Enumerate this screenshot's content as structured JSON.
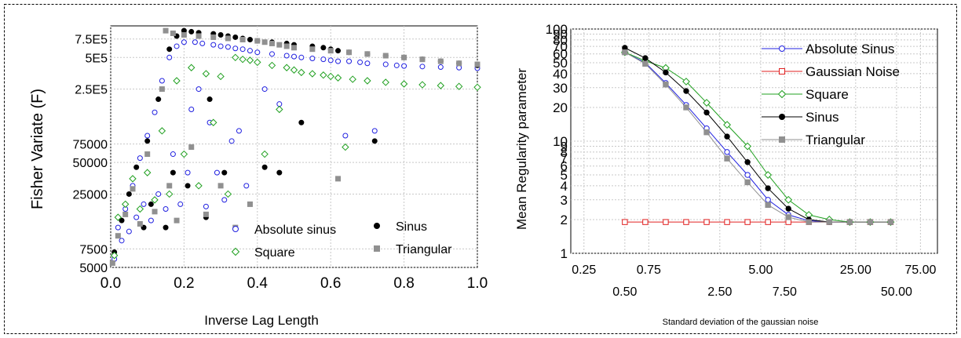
{
  "chart_data": [
    {
      "type": "scatter",
      "xlabel": "Inverse Lag Length",
      "ylabel": "Fisher Variate (F)",
      "x_scale": "linear",
      "y_scale": "log",
      "xlim": [
        0.0,
        1.0
      ],
      "ylim": [
        5000,
        1000000
      ],
      "x_ticks": [
        "0.0",
        "0.2",
        "0.4",
        "0.6",
        "0.8",
        "1.0"
      ],
      "x_tick_values": [
        0.0,
        0.2,
        0.4,
        0.6,
        0.8,
        1.0
      ],
      "y_ticks": [
        "5000",
        "7500",
        "25000",
        "50000",
        "75000",
        "2.5E5",
        "5E5",
        "7.5E5"
      ],
      "y_tick_values": [
        5000,
        7500,
        25000,
        50000,
        75000,
        250000,
        500000,
        750000
      ],
      "grid": true,
      "legend_position": "bottom-right",
      "series": [
        {
          "name": "Absolute sinus",
          "marker": "open-circle",
          "color": "#2020e0",
          "points": [
            [
              0.01,
              6000
            ],
            [
              0.02,
              12000
            ],
            [
              0.03,
              9000
            ],
            [
              0.04,
              18000
            ],
            [
              0.05,
              11000
            ],
            [
              0.06,
              30000
            ],
            [
              0.07,
              15000
            ],
            [
              0.08,
              55000
            ],
            [
              0.09,
              20000
            ],
            [
              0.1,
              90000
            ],
            [
              0.11,
              14000
            ],
            [
              0.12,
              150000
            ],
            [
              0.13,
              25000
            ],
            [
              0.14,
              300000
            ],
            [
              0.15,
              18000
            ],
            [
              0.16,
              500000
            ],
            [
              0.17,
              60000
            ],
            [
              0.18,
              640000
            ],
            [
              0.19,
              20000
            ],
            [
              0.2,
              700000
            ],
            [
              0.21,
              40000
            ],
            [
              0.22,
              160000
            ],
            [
              0.23,
              700000
            ],
            [
              0.24,
              250000
            ],
            [
              0.25,
              680000
            ],
            [
              0.26,
              19000
            ],
            [
              0.27,
              120000
            ],
            [
              0.28,
              660000
            ],
            [
              0.29,
              40000
            ],
            [
              0.3,
              640000
            ],
            [
              0.31,
              22000
            ],
            [
              0.32,
              630000
            ],
            [
              0.33,
              80000
            ],
            [
              0.34,
              610000
            ],
            [
              0.35,
              100000
            ],
            [
              0.36,
              600000
            ],
            [
              0.37,
              30000
            ],
            [
              0.38,
              580000
            ],
            [
              0.4,
              560000
            ],
            [
              0.42,
              250000
            ],
            [
              0.44,
              540000
            ],
            [
              0.46,
              180000
            ],
            [
              0.48,
              520000
            ],
            [
              0.5,
              510000
            ],
            [
              0.52,
              500000
            ],
            [
              0.55,
              490000
            ],
            [
              0.58,
              480000
            ],
            [
              0.6,
              470000
            ],
            [
              0.62,
              460000
            ],
            [
              0.64,
              90000
            ],
            [
              0.65,
              460000
            ],
            [
              0.68,
              450000
            ],
            [
              0.7,
              440000
            ],
            [
              0.72,
              100000
            ],
            [
              0.75,
              430000
            ],
            [
              0.78,
              420000
            ],
            [
              0.8,
              415000
            ],
            [
              0.85,
              410000
            ],
            [
              0.9,
              405000
            ],
            [
              0.95,
              400000
            ],
            [
              1.0,
              395000
            ]
          ]
        },
        {
          "name": "Sinus",
          "marker": "filled-circle",
          "color": "#000000",
          "points": [
            [
              0.01,
              7000
            ],
            [
              0.03,
              14000
            ],
            [
              0.05,
              25000
            ],
            [
              0.07,
              45000
            ],
            [
              0.09,
              12000
            ],
            [
              0.1,
              80000
            ],
            [
              0.11,
              20000
            ],
            [
              0.13,
              200000
            ],
            [
              0.15,
              12000
            ],
            [
              0.16,
              600000
            ],
            [
              0.17,
              40000
            ],
            [
              0.18,
              800000
            ],
            [
              0.2,
              900000
            ],
            [
              0.21,
              30000
            ],
            [
              0.22,
              880000
            ],
            [
              0.24,
              860000
            ],
            [
              0.26,
              15000
            ],
            [
              0.27,
              200000
            ],
            [
              0.28,
              840000
            ],
            [
              0.3,
              820000
            ],
            [
              0.31,
              40000
            ],
            [
              0.32,
              800000
            ],
            [
              0.34,
              780000
            ],
            [
              0.36,
              760000
            ],
            [
              0.38,
              740000
            ],
            [
              0.4,
              720000
            ],
            [
              0.42,
              45000
            ],
            [
              0.44,
              700000
            ],
            [
              0.46,
              40000
            ],
            [
              0.48,
              680000
            ],
            [
              0.5,
              660000
            ],
            [
              0.52,
              120000
            ],
            [
              0.55,
              640000
            ],
            [
              0.58,
              620000
            ],
            [
              0.6,
              600000
            ],
            [
              0.62,
              580000
            ],
            [
              0.65,
              560000
            ],
            [
              0.7,
              540000
            ],
            [
              0.72,
              80000
            ],
            [
              0.75,
              520000
            ],
            [
              0.8,
              500000
            ],
            [
              0.85,
              480000
            ],
            [
              0.9,
              460000
            ],
            [
              0.95,
              440000
            ],
            [
              1.0,
              420000
            ]
          ]
        },
        {
          "name": "Square",
          "marker": "open-diamond",
          "color": "#20a020",
          "points": [
            [
              0.01,
              6500
            ],
            [
              0.02,
              15000
            ],
            [
              0.04,
              20000
            ],
            [
              0.06,
              35000
            ],
            [
              0.08,
              18000
            ],
            [
              0.1,
              40000
            ],
            [
              0.12,
              22000
            ],
            [
              0.14,
              100000
            ],
            [
              0.16,
              25000
            ],
            [
              0.18,
              300000
            ],
            [
              0.2,
              60000
            ],
            [
              0.22,
              400000
            ],
            [
              0.24,
              30000
            ],
            [
              0.26,
              350000
            ],
            [
              0.28,
              120000
            ],
            [
              0.3,
              330000
            ],
            [
              0.32,
              25000
            ],
            [
              0.34,
              500000
            ],
            [
              0.36,
              480000
            ],
            [
              0.38,
              470000
            ],
            [
              0.4,
              450000
            ],
            [
              0.42,
              60000
            ],
            [
              0.44,
              420000
            ],
            [
              0.46,
              160000
            ],
            [
              0.48,
              400000
            ],
            [
              0.5,
              380000
            ],
            [
              0.52,
              360000
            ],
            [
              0.55,
              350000
            ],
            [
              0.58,
              340000
            ],
            [
              0.6,
              330000
            ],
            [
              0.62,
              320000
            ],
            [
              0.64,
              70000
            ],
            [
              0.66,
              310000
            ],
            [
              0.7,
              300000
            ],
            [
              0.75,
              290000
            ],
            [
              0.8,
              280000
            ],
            [
              0.85,
              275000
            ],
            [
              0.9,
              270000
            ],
            [
              0.95,
              265000
            ],
            [
              1.0,
              260000
            ]
          ]
        },
        {
          "name": "Triangular",
          "marker": "filled-square",
          "color": "#909090",
          "points": [
            [
              0.005,
              5500
            ],
            [
              0.02,
              10000
            ],
            [
              0.04,
              16000
            ],
            [
              0.06,
              28000
            ],
            [
              0.08,
              13000
            ],
            [
              0.1,
              60000
            ],
            [
              0.12,
              17000
            ],
            [
              0.14,
              250000
            ],
            [
              0.15,
              900000
            ],
            [
              0.16,
              30000
            ],
            [
              0.17,
              850000
            ],
            [
              0.18,
              14000
            ],
            [
              0.2,
              820000
            ],
            [
              0.22,
              70000
            ],
            [
              0.24,
              800000
            ],
            [
              0.26,
              16000
            ],
            [
              0.28,
              780000
            ],
            [
              0.3,
              30000
            ],
            [
              0.32,
              760000
            ],
            [
              0.34,
              12000
            ],
            [
              0.36,
              740000
            ],
            [
              0.38,
              20000
            ],
            [
              0.4,
              720000
            ],
            [
              0.42,
              700000
            ],
            [
              0.44,
              680000
            ],
            [
              0.46,
              660000
            ],
            [
              0.48,
              640000
            ],
            [
              0.5,
              620000
            ],
            [
              0.55,
              600000
            ],
            [
              0.6,
              580000
            ],
            [
              0.62,
              35000
            ],
            [
              0.65,
              560000
            ],
            [
              0.7,
              540000
            ],
            [
              0.75,
              520000
            ],
            [
              0.8,
              500000
            ],
            [
              0.85,
              480000
            ],
            [
              0.9,
              460000
            ],
            [
              0.95,
              440000
            ],
            [
              1.0,
              430000
            ]
          ]
        }
      ]
    },
    {
      "type": "line",
      "xlabel": "Standard deviation of the gaussian noise",
      "ylabel": "Mean Regularity parameter",
      "x_scale": "log",
      "y_scale": "log",
      "xlim": [
        0.2,
        100
      ],
      "ylim": [
        1,
        100
      ],
      "x_ticks_top": [
        "0.25",
        "0.75",
        "5.00",
        "25.00",
        "75.00"
      ],
      "x_ticks_top_values": [
        0.25,
        0.75,
        5.0,
        25.0,
        75.0
      ],
      "x_ticks_bottom": [
        "0.50",
        "2.50",
        "7.50",
        "50.00"
      ],
      "x_ticks_bottom_values": [
        0.5,
        2.5,
        7.5,
        50.0
      ],
      "y_ticks": [
        "1",
        "2",
        "3",
        "4",
        "5",
        "6",
        "7",
        "8",
        "9",
        "10",
        "20",
        "30",
        "40",
        "50",
        "60",
        "70",
        "80",
        "90",
        "100"
      ],
      "y_tick_values": [
        1,
        2,
        3,
        4,
        5,
        6,
        7,
        8,
        9,
        10,
        20,
        30,
        40,
        50,
        60,
        70,
        80,
        90,
        100
      ],
      "grid": true,
      "legend_position": "top-right",
      "x": [
        0.5,
        0.707,
        1.0,
        1.414,
        2.0,
        2.828,
        4.0,
        5.657,
        8.0,
        11.31,
        16.0,
        22.63,
        32.0,
        45.25
      ],
      "series": [
        {
          "name": "Absolute Sinus",
          "marker": "open-circle",
          "color": "#2020e0",
          "values": [
            62,
            50,
            33,
            21,
            13,
            8.0,
            5.0,
            3.0,
            2.2,
            1.95,
            1.9,
            1.9,
            1.9,
            1.9
          ]
        },
        {
          "name": "Gaussian Noise",
          "marker": "open-square",
          "color": "#e02020",
          "values": [
            1.9,
            1.9,
            1.9,
            1.9,
            1.9,
            1.9,
            1.9,
            1.9,
            1.9,
            1.9,
            1.9,
            1.9,
            1.9,
            1.9
          ]
        },
        {
          "name": "Square",
          "marker": "open-diamond",
          "color": "#20a020",
          "values": [
            62,
            52,
            45,
            34,
            22,
            14,
            9.0,
            5.0,
            3.0,
            2.2,
            2.0,
            1.9,
            1.9,
            1.9
          ]
        },
        {
          "name": "Sinus",
          "marker": "filled-circle",
          "color": "#000000",
          "values": [
            68,
            55,
            41,
            28,
            18,
            11,
            6.5,
            3.8,
            2.5,
            2.0,
            1.9,
            1.9,
            1.9,
            1.9
          ]
        },
        {
          "name": "Triangular",
          "marker": "filled-square",
          "color": "#909090",
          "values": [
            62,
            49,
            32,
            20,
            12,
            7.0,
            4.3,
            2.7,
            2.1,
            1.9,
            1.9,
            1.9,
            1.9,
            1.9
          ]
        }
      ]
    }
  ]
}
